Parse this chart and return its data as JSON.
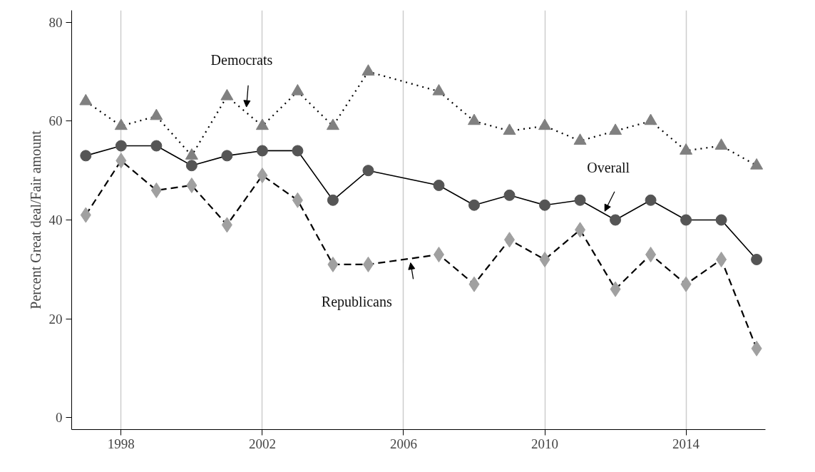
{
  "chart_data": {
    "type": "line",
    "ylabel": "Percent Great deal/Fair amount",
    "x": [
      1997,
      1998,
      1999,
      2000,
      2001,
      2002,
      2003,
      2004,
      2005,
      2007,
      2008,
      2009,
      2010,
      2011,
      2012,
      2013,
      2014,
      2015,
      2016
    ],
    "series": [
      {
        "name": "Democrats",
        "color": "#808080",
        "marker": "triangle",
        "line_style": "dotted",
        "values": [
          64,
          59,
          61,
          53,
          65,
          59,
          66,
          59,
          70,
          66,
          60,
          58,
          59,
          56,
          58,
          60,
          54,
          55,
          51
        ]
      },
      {
        "name": "Overall",
        "color": "#555555",
        "marker": "circle",
        "line_style": "solid",
        "values": [
          53,
          55,
          55,
          51,
          53,
          54,
          54,
          44,
          50,
          47,
          43,
          45,
          43,
          44,
          40,
          44,
          40,
          40,
          32
        ]
      },
      {
        "name": "Republicans",
        "color": "#a0a0a0",
        "marker": "diamond",
        "line_style": "dashed",
        "values": [
          41,
          52,
          46,
          47,
          39,
          49,
          44,
          31,
          31,
          33,
          27,
          36,
          32,
          38,
          26,
          33,
          27,
          32,
          14
        ]
      }
    ],
    "xlim": [
      1996.6,
      2016.25
    ],
    "ylim": [
      -2.4,
      82.4
    ],
    "xticks": [
      1998,
      2002,
      2006,
      2010,
      2014
    ],
    "yticks": [
      0,
      20,
      40,
      60,
      80
    ],
    "grid": "x"
  }
}
